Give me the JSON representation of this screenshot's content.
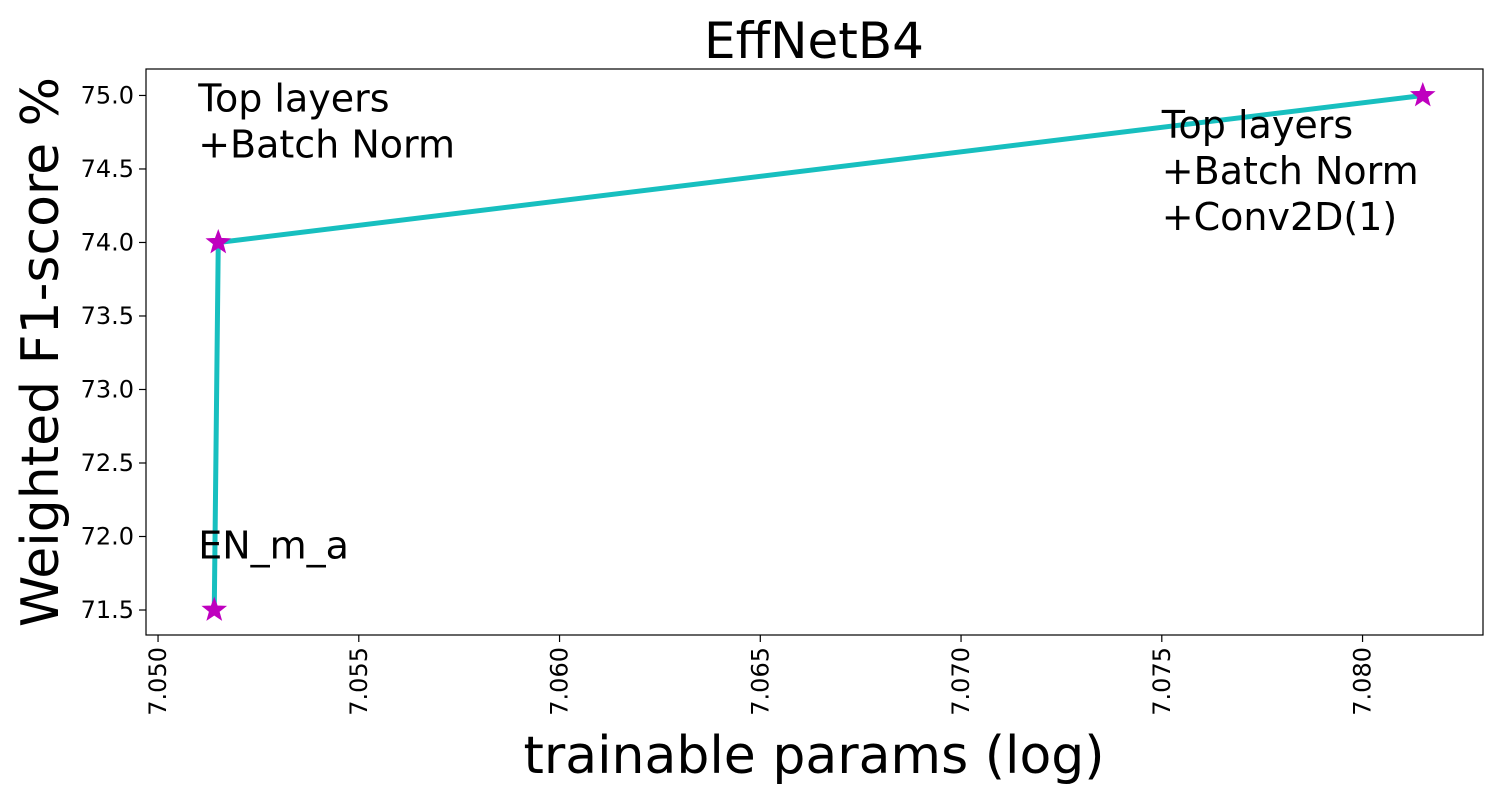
{
  "chart_data": {
    "type": "line",
    "title": "EffNetB4",
    "xlabel": "trainable params (log)",
    "ylabel": "Weighted F1-score %",
    "xlim": [
      7.0497,
      7.083
    ],
    "ylim": [
      71.33,
      75.18
    ],
    "x_scale": "linear",
    "grid": false,
    "x_ticks": [
      "7.050",
      "7.055",
      "7.060",
      "7.065",
      "7.070",
      "7.075",
      "7.080"
    ],
    "y_ticks": [
      "71.5",
      "72.0",
      "72.5",
      "73.0",
      "73.5",
      "74.0",
      "74.5",
      "75.0"
    ],
    "series": [
      {
        "x": [
          7.0514,
          7.0515,
          7.0815
        ],
        "y": [
          71.5,
          74.0,
          75.0
        ],
        "color": "#17bfbf",
        "marker": "star",
        "marker_color": "#bf00bf"
      }
    ],
    "annotations": [
      {
        "lines": [
          "EN_m_a"
        ],
        "x": 7.051,
        "y": 71.85
      },
      {
        "lines": [
          "Top layers",
          "+Batch Norm"
        ],
        "x": 7.051,
        "y": 74.89
      },
      {
        "lines": [
          "Top layers",
          "+Batch Norm",
          "+Conv2D(1)"
        ],
        "x": 7.075,
        "y": 74.71
      }
    ]
  }
}
